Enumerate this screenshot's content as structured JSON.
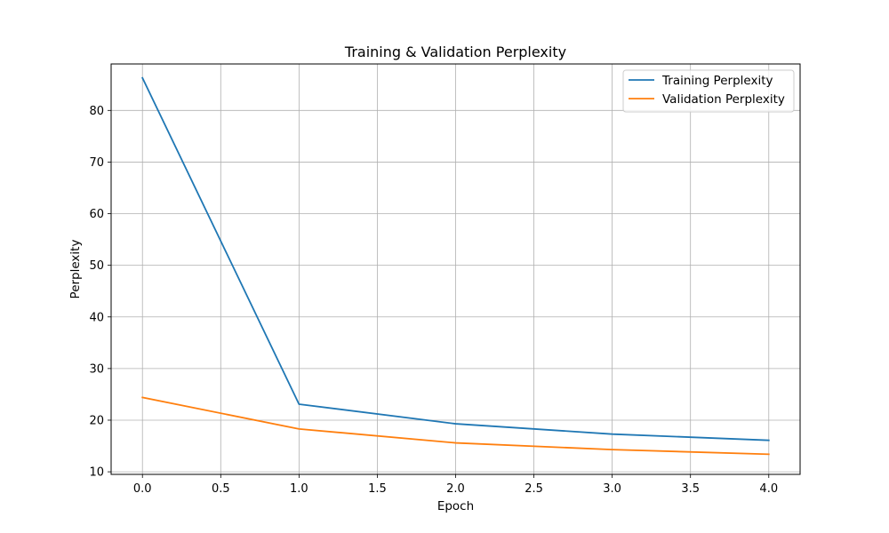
{
  "chart_data": {
    "type": "line",
    "title": "Training & Validation Perplexity",
    "xlabel": "Epoch",
    "ylabel": "Perplexity",
    "x": [
      0,
      1,
      2,
      3,
      4
    ],
    "xlim": [
      -0.2,
      4.2
    ],
    "ylim": [
      9.5,
      89.0
    ],
    "xticks": [
      0.0,
      0.5,
      1.0,
      1.5,
      2.0,
      2.5,
      3.0,
      3.5,
      4.0
    ],
    "xtick_labels": [
      "0.0",
      "0.5",
      "1.0",
      "1.5",
      "2.0",
      "2.5",
      "3.0",
      "3.5",
      "4.0"
    ],
    "yticks": [
      10,
      20,
      30,
      40,
      50,
      60,
      70,
      80
    ],
    "ytick_labels": [
      "10",
      "20",
      "30",
      "40",
      "50",
      "60",
      "70",
      "80"
    ],
    "grid": true,
    "legend_position": "top-right",
    "series": [
      {
        "name": "Training Perplexity",
        "color": "#1f77b4",
        "values": [
          86.3,
          23.1,
          19.3,
          17.3,
          16.1
        ]
      },
      {
        "name": "Validation Perplexity",
        "color": "#ff7f0e",
        "values": [
          24.4,
          18.3,
          15.6,
          14.3,
          13.4
        ]
      }
    ]
  }
}
